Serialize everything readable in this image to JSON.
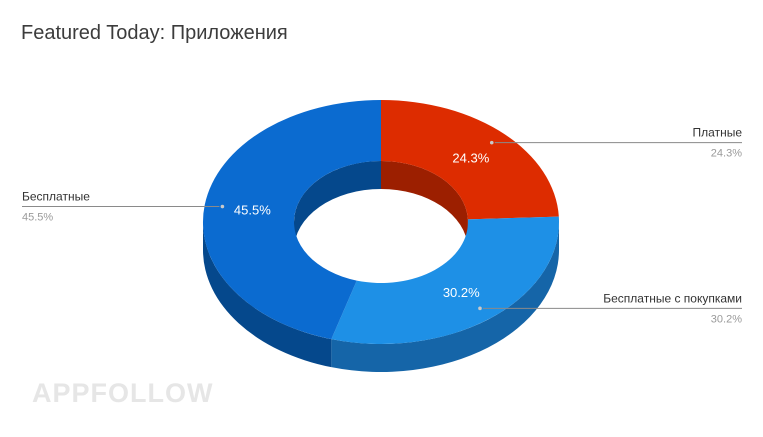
{
  "chart_data": {
    "type": "pie",
    "style": "3d-donut",
    "title": "Featured Today: Приложения",
    "slices": [
      {
        "label": "Платные",
        "value": 24.3,
        "display": "24.3%",
        "color": "#dd2c00",
        "side_color": "#9c1f00"
      },
      {
        "label": "Бесплатные с покупками",
        "value": 30.2,
        "display": "30.2%",
        "color": "#1e90e6",
        "side_color": "#1565a8"
      },
      {
        "label": "Бесплатные",
        "value": 45.5,
        "display": "45.5%",
        "color": "#0b6bd0",
        "side_color": "#05488c"
      }
    ],
    "legend": "callout-labels"
  },
  "watermark": "APPFOLLOW"
}
